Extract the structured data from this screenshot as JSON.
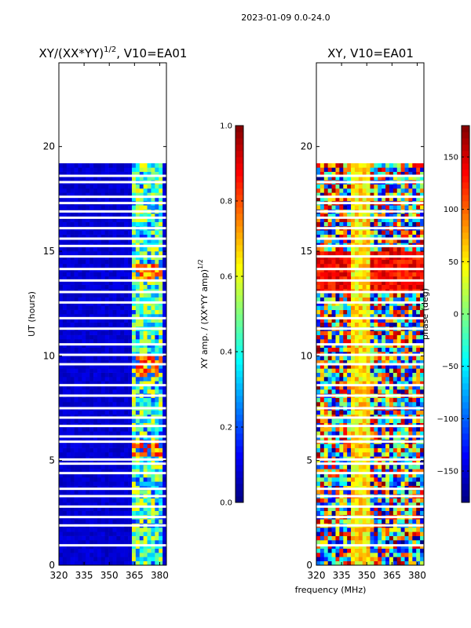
{
  "suptitle": "2023-01-09 0.0-24.0",
  "xlabel": "frequency (MHz)",
  "left_panel": {
    "title_main": "XY/(XX*YY)",
    "title_exp": "1/2",
    "title_tail": ", V10=EA01",
    "ylabel": "UT (hours)",
    "colorbar_label_main": "XY amp. / (XX*YY amp)",
    "colorbar_label_exp": "1/2"
  },
  "right_panel": {
    "title": "XY, V10=EA01",
    "colorbar_label": "phase (deg)"
  },
  "chart_data": [
    {
      "type": "heatmap",
      "title": "XY/(XX*YY)^1/2, V10=EA01",
      "xlabel": "frequency (MHz)",
      "ylabel": "UT (hours)",
      "xlim": [
        320,
        384
      ],
      "ylim": [
        0,
        24
      ],
      "xticks": [
        320,
        335,
        350,
        365,
        380
      ],
      "yticks": [
        0,
        5,
        10,
        15,
        20
      ],
      "xtick_labels": [
        "320",
        "335",
        "350",
        "365",
        "380"
      ],
      "ytick_labels": [
        "0",
        "5",
        "10",
        "15",
        "20"
      ],
      "data_extent_hours": [
        0,
        19.2
      ],
      "colorbar": {
        "vmin": 0.0,
        "vmax": 1.0,
        "ticks": [
          0.0,
          0.2,
          0.4,
          0.6,
          0.8,
          1.0
        ],
        "tick_labels": [
          "0.0",
          "0.2",
          "0.4",
          "0.6",
          "0.8",
          "1.0"
        ],
        "colormap": "jet"
      },
      "high_amp_band_MHz": [
        364,
        382
      ],
      "typical_background_value": 0.05
    },
    {
      "type": "heatmap",
      "title": "XY, V10=EA01",
      "xlabel": "frequency (MHz)",
      "ylabel": "",
      "xlim": [
        320,
        384
      ],
      "ylim": [
        0,
        24
      ],
      "xticks": [
        320,
        335,
        350,
        365,
        380
      ],
      "yticks": [
        0,
        5,
        10,
        15,
        20
      ],
      "xtick_labels": [
        "320",
        "335",
        "350",
        "365",
        "380"
      ],
      "ytick_labels": [
        "0",
        "5",
        "10",
        "15",
        "20"
      ],
      "data_extent_hours": [
        0,
        19.2
      ],
      "colorbar": {
        "vmin": -180,
        "vmax": 180,
        "ticks": [
          -150,
          -100,
          -50,
          0,
          50,
          100,
          150
        ],
        "tick_labels": [
          "−150",
          "−100",
          "−50",
          "0",
          "50",
          "100",
          "150"
        ],
        "colormap": "jet",
        "label": "phase (deg)"
      }
    }
  ],
  "gaps_hours": [
    0.95,
    1.9,
    2.3,
    2.8,
    3.3,
    3.65,
    4.4,
    4.85,
    5.05,
    5.9,
    6.15,
    6.65,
    7.05,
    7.5,
    8.1,
    8.6,
    9.6,
    10.05,
    10.55,
    11.3,
    11.8,
    12.55,
    13.05,
    13.6,
    14.15,
    14.75,
    15.25,
    15.6,
    16.1,
    16.6,
    16.9,
    17.3,
    17.6,
    18.3,
    18.6
  ]
}
